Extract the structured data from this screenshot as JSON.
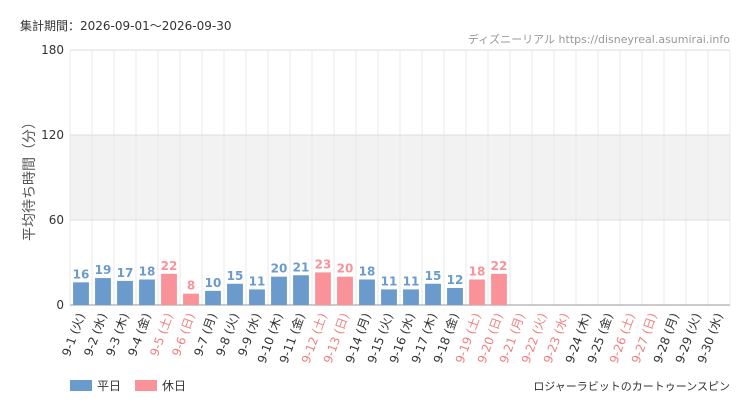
{
  "chart_data": {
    "type": "bar",
    "title": "集計期間：2026-09-01～2026-09-30",
    "source": "ディズニーリアル https://disneyreal.asumirai.info",
    "subtitle": "ロジャーラビットのカートゥーンスピン",
    "y_label": "平均待ち時間（分）",
    "categories": [
      "9-1 (火)",
      "9-2 (水)",
      "9-3 (木)",
      "9-4 (金)",
      "9-5 (土)",
      "9-6 (日)",
      "9-7 (月)",
      "9-8 (火)",
      "9-9 (水)",
      "9-10 (木)",
      "9-11 (金)",
      "9-12 (土)",
      "9-13 (日)",
      "9-14 (月)",
      "9-15 (火)",
      "9-16 (水)",
      "9-17 (木)",
      "9-18 (金)",
      "9-19 (土)",
      "9-20 (日)",
      "9-21 (月)",
      "9-22 (火)",
      "9-23 (水)",
      "9-24 (木)",
      "9-25 (金)",
      "9-26 (土)",
      "9-27 (日)",
      "9-28 (月)",
      "9-29 (火)",
      "9-30 (水)"
    ],
    "category_colors": [
      "#333333",
      "#333333",
      "#333333",
      "#333333",
      "#f08080",
      "#f08080",
      "#333333",
      "#333333",
      "#333333",
      "#333333",
      "#333333",
      "#f08080",
      "#f08080",
      "#333333",
      "#333333",
      "#333333",
      "#333333",
      "#333333",
      "#f08080",
      "#f08080",
      "#f08080",
      "#f08080",
      "#f08080",
      "#333333",
      "#333333",
      "#f08080",
      "#f08080",
      "#333333",
      "#333333",
      "#333333"
    ],
    "series": [
      {
        "name": "平日",
        "color": "#6a9bcc",
        "values": [
          16,
          19,
          17,
          18,
          null,
          null,
          10,
          15,
          11,
          20,
          21,
          null,
          null,
          18,
          11,
          11,
          15,
          12,
          null,
          null,
          null,
          null,
          null,
          null,
          null,
          null,
          null,
          null,
          null,
          null
        ]
      },
      {
        "name": "休日",
        "color": "#f99399",
        "values": [
          null,
          null,
          null,
          null,
          22,
          8,
          null,
          null,
          null,
          null,
          null,
          23,
          20,
          null,
          null,
          null,
          null,
          null,
          18,
          22,
          null,
          null,
          null,
          null,
          null,
          null,
          null,
          null,
          null,
          null
        ]
      }
    ],
    "ylim": [
      0,
      180
    ],
    "yticks": [
      0,
      60,
      120,
      180
    ],
    "grid": true
  }
}
